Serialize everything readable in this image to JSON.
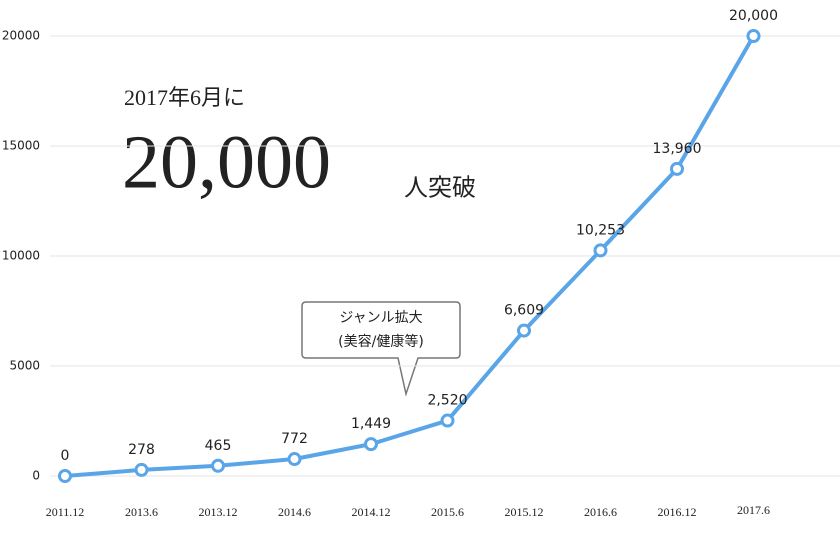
{
  "chart_data": {
    "type": "line",
    "headline": {
      "lead": "2017年6月に",
      "number": "20,000",
      "suffix": "人突破"
    },
    "callout": [
      "ジャンル拡大",
      "(美容/健康等)"
    ],
    "categories": [
      "2011.12",
      "2013.6",
      "2013.12",
      "2014.6",
      "2014.12",
      "2015.6",
      "2015.12",
      "2016.6",
      "2016.12",
      "2017.6"
    ],
    "values": [
      0,
      278,
      465,
      772,
      1449,
      2520,
      6609,
      10253,
      13960,
      20000
    ],
    "value_labels": [
      "0",
      "278",
      "465",
      "772",
      "1,449",
      "2,520",
      "6,609",
      "10,253",
      "13,960",
      "20,000"
    ],
    "color": "#5aa5e8",
    "ylim": [
      0,
      20000
    ],
    "yticks": [
      0,
      5000,
      10000,
      15000,
      20000
    ],
    "grid": true
  }
}
